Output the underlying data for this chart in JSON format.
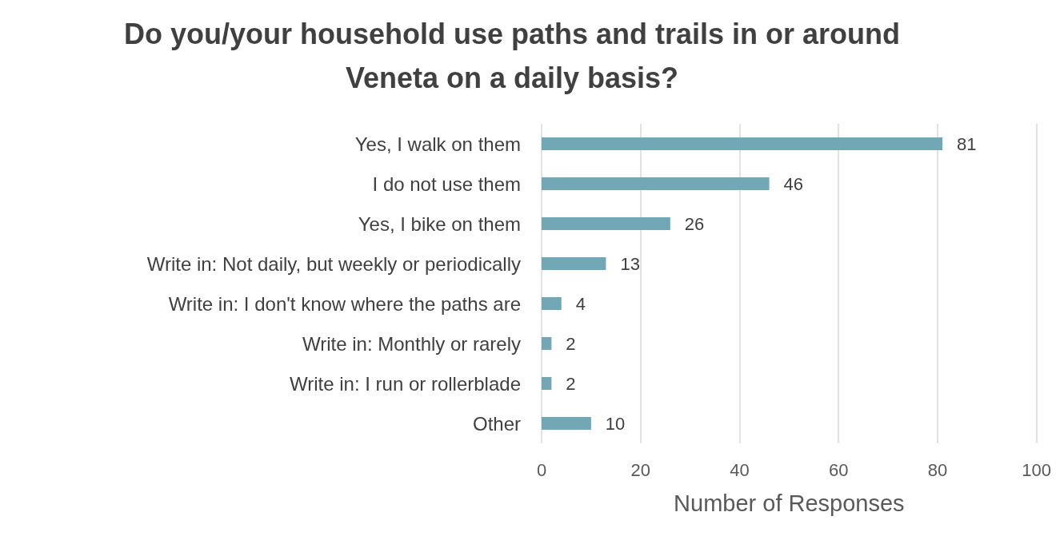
{
  "chart_data": {
    "type": "bar",
    "orientation": "horizontal",
    "title": "Do you/your household use paths and trails in or around\nVeneta on a daily basis?",
    "xlabel": "Number of Responses",
    "categories": [
      "Yes, I walk on them",
      "I do not use them",
      "Yes, I bike on them",
      "Write in: Not daily, but weekly or periodically",
      "Write in: I don't know where the paths are",
      "Write in: Monthly or rarely",
      "Write in: I run or rollerblade",
      "Other"
    ],
    "values": [
      81,
      46,
      26,
      13,
      4,
      2,
      2,
      10
    ],
    "color": "#72a8b5",
    "xlim": [
      0,
      100
    ],
    "xticks": [
      0,
      20,
      40,
      60,
      80,
      100
    ],
    "grid": "x",
    "data_labels": true
  }
}
